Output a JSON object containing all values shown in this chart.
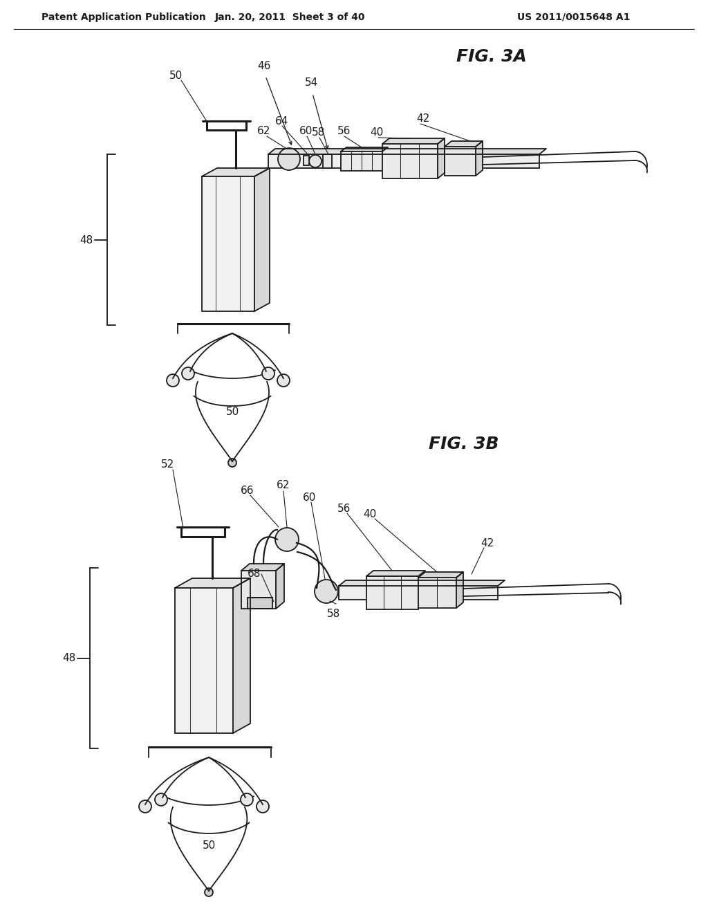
{
  "bg_color": "#ffffff",
  "line_color": "#1a1a1a",
  "header_text": "Patent Application Publication",
  "header_date": "Jan. 20, 2011  Sheet 3 of 40",
  "header_patent": "US 2011/0015648 A1",
  "fig3a_label": "FIG. 3A",
  "fig3b_label": "FIG. 3B",
  "label_fontsize": 11,
  "fig_label_fontsize": 18,
  "header_fontsize": 10,
  "line_width": 1.3,
  "thick_line": 2.2
}
